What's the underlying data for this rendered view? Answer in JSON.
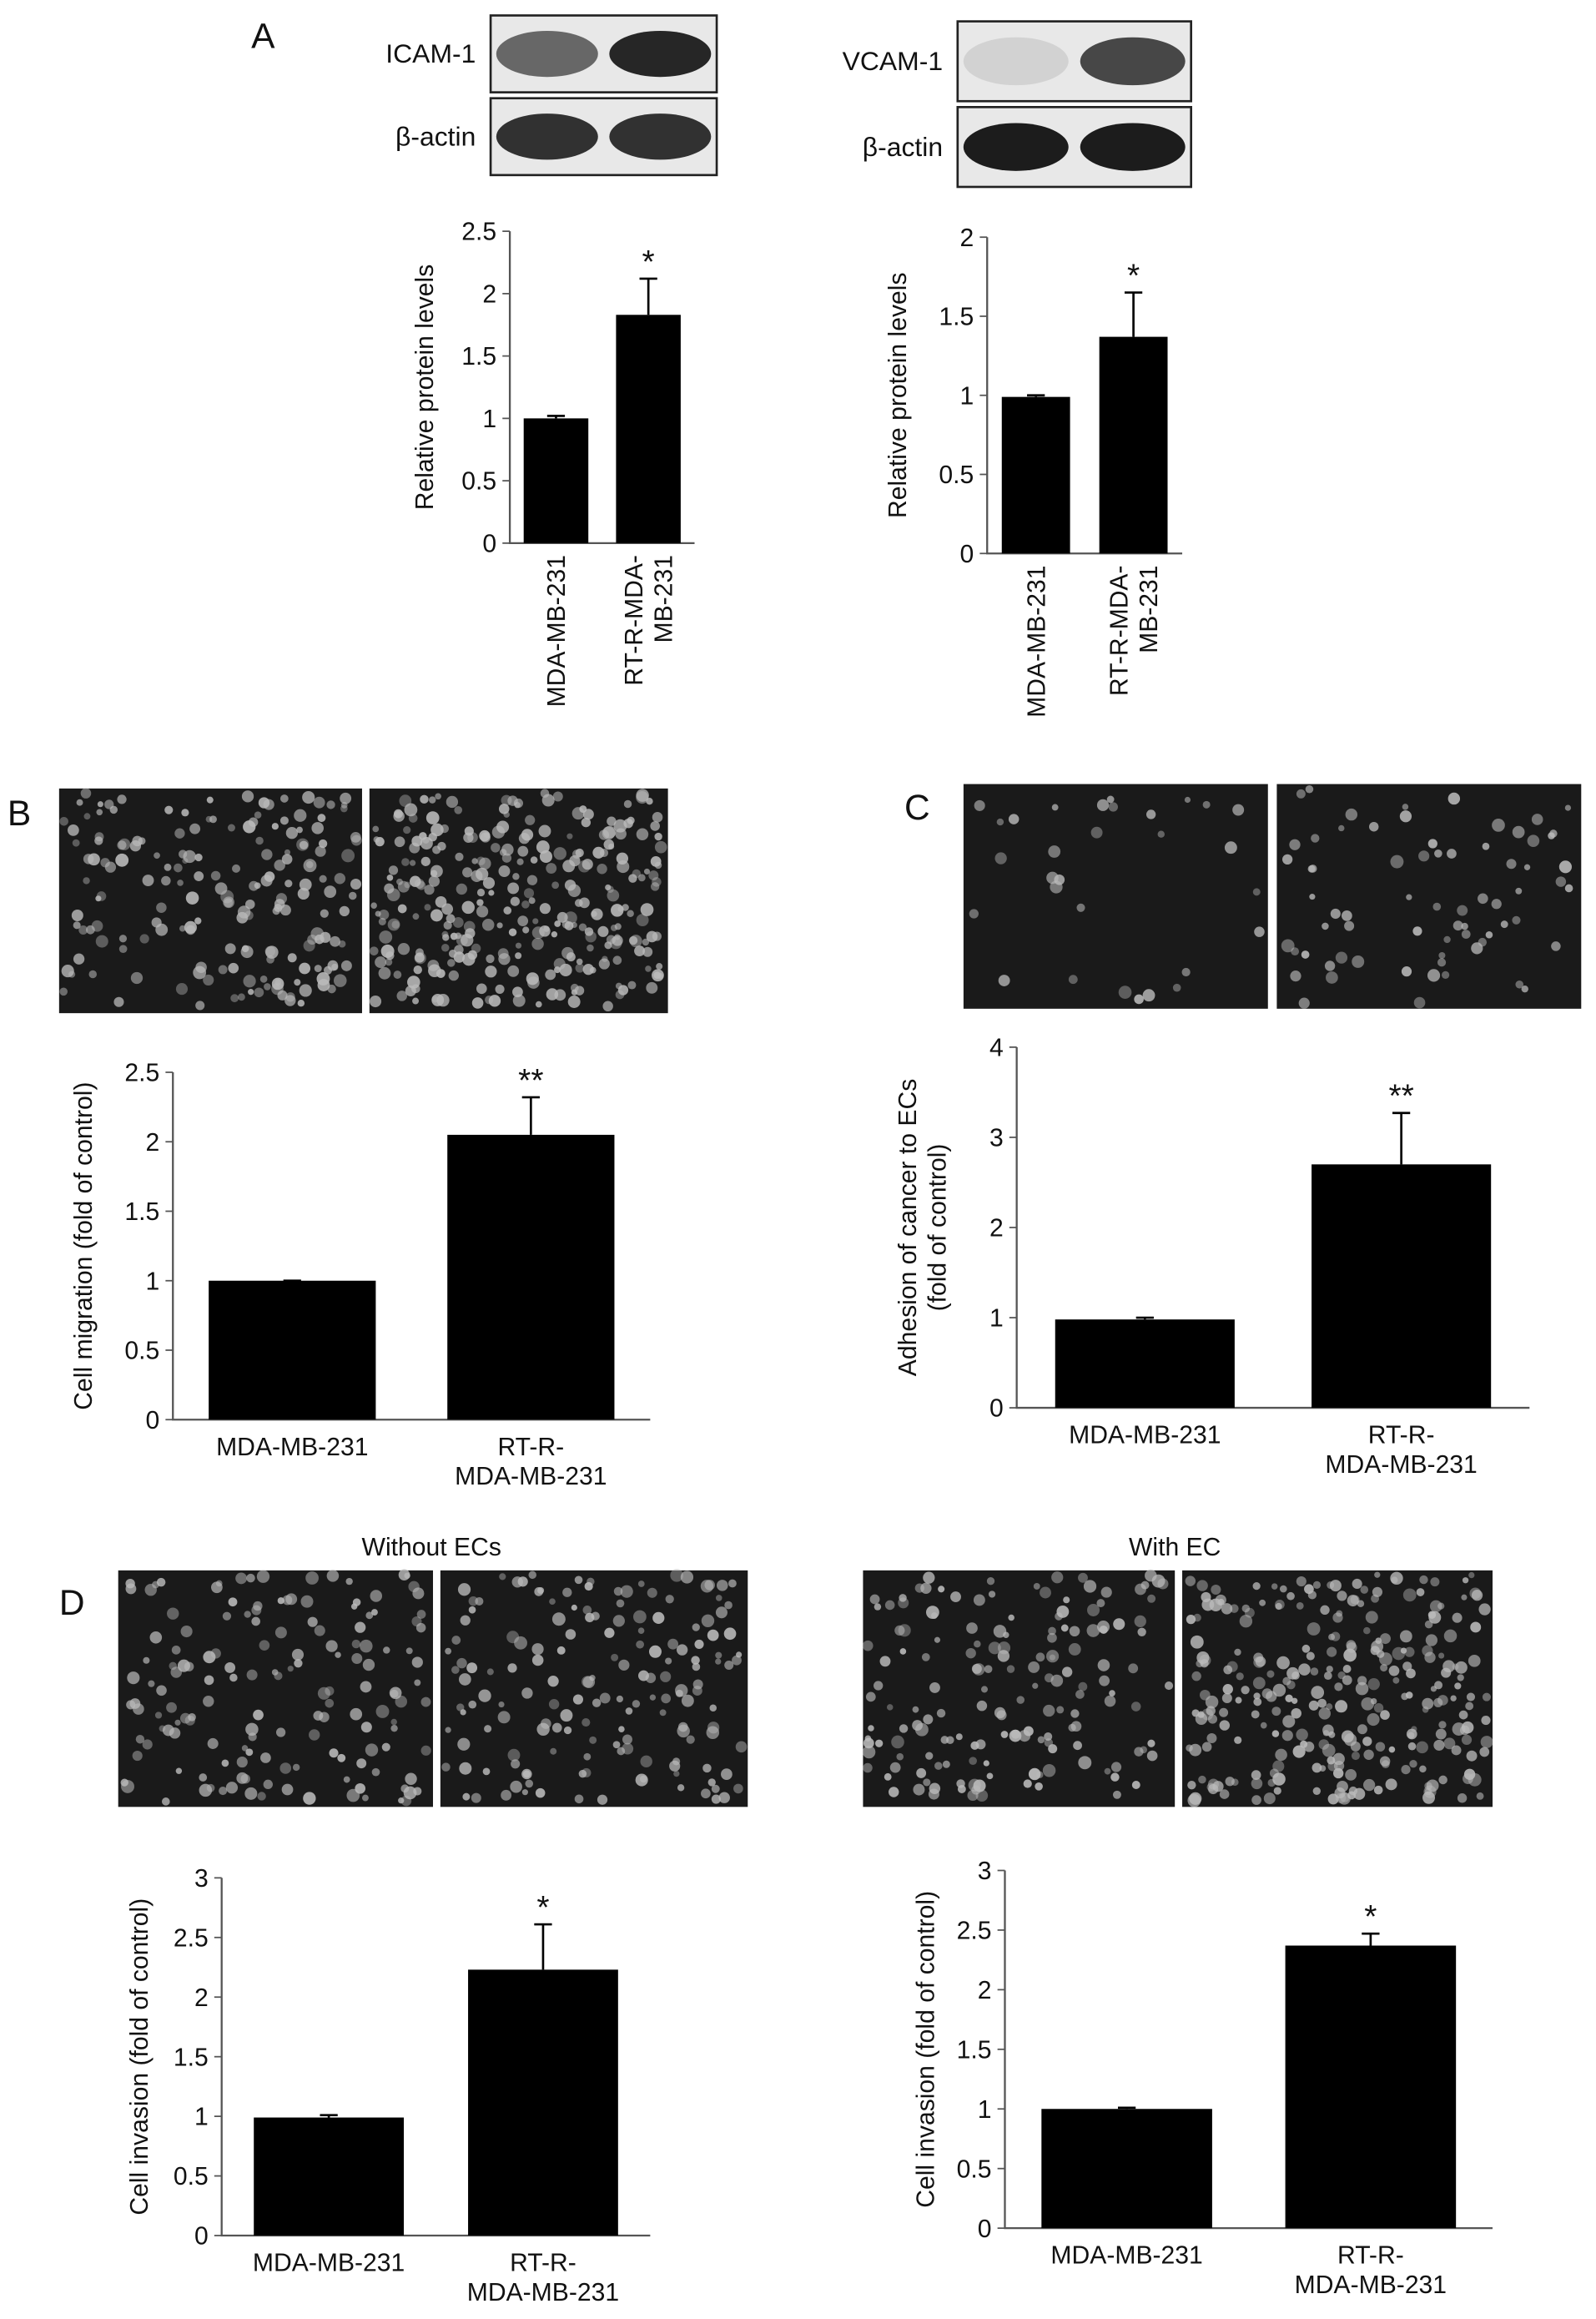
{
  "labels": [
    "A",
    "B",
    "C",
    "D"
  ],
  "blots": [
    {
      "label": "ICAM-1"
    },
    {
      "label": "β-actin"
    },
    {
      "label": "VCAM-1"
    },
    {
      "label": "β-actin"
    }
  ],
  "chart_data": [
    {
      "type": "bar",
      "ylabel": [
        "Relative protein levels"
      ],
      "categories": [
        [
          "MDA-MB-231"
        ],
        [
          "RT-R-MDA-",
          "MB-231"
        ]
      ],
      "values": [
        1.0,
        1.83
      ],
      "errors": [
        0.02,
        0.29
      ],
      "annotation": "*",
      "color": "#000000",
      "ylim": [
        0,
        2.5
      ],
      "yticks": [
        0,
        0.5,
        1,
        1.5,
        2,
        2.5
      ],
      "rotated_categories": true
    },
    {
      "type": "bar",
      "ylabel": [
        "Relative protein levels"
      ],
      "categories": [
        [
          "MDA-MB-231"
        ],
        [
          "RT-R-MDA-",
          "MB-231"
        ]
      ],
      "values": [
        0.99,
        1.37
      ],
      "errors": [
        0.01,
        0.28
      ],
      "annotation": "*",
      "color": "#000000",
      "ylim": [
        0,
        2
      ],
      "yticks": [
        0,
        0.5,
        1,
        1.5,
        2
      ],
      "rotated_categories": true
    },
    {
      "type": "bar",
      "ylabel": [
        "Cell migration (fold of control)"
      ],
      "categories": [
        [
          "MDA-MB-231"
        ],
        [
          "RT-R-",
          "MDA-MB-231"
        ]
      ],
      "values": [
        1.0,
        2.05
      ],
      "errors": [
        0.0,
        0.27
      ],
      "annotation": "**",
      "color": "#000000",
      "ylim": [
        0,
        2.5
      ],
      "yticks": [
        0,
        0.5,
        1,
        1.5,
        2,
        2.5
      ]
    },
    {
      "type": "bar",
      "ylabel": [
        "Adhesion of cancer to ECs",
        "(fold of control)"
      ],
      "categories": [
        [
          "MDA-MB-231"
        ],
        [
          "RT-R-",
          "MDA-MB-231"
        ]
      ],
      "values": [
        0.98,
        2.7
      ],
      "errors": [
        0.02,
        0.57
      ],
      "annotation": "**",
      "color": "#000000",
      "ylim": [
        0,
        4
      ],
      "yticks": [
        0,
        1,
        2,
        3,
        4
      ]
    },
    {
      "type": "bar",
      "title": "Without ECs",
      "ylabel": [
        "Cell invasion (fold of control)"
      ],
      "categories": [
        [
          "MDA-MB-231"
        ],
        [
          "RT-R-",
          "MDA-MB-231"
        ]
      ],
      "values": [
        0.99,
        2.23
      ],
      "errors": [
        0.02,
        0.38
      ],
      "annotation": "*",
      "color": "#000000",
      "ylim": [
        0,
        3
      ],
      "yticks": [
        0,
        0.5,
        1,
        1.5,
        2,
        2.5,
        3
      ]
    },
    {
      "type": "bar",
      "title": "With EC",
      "ylabel": [
        "Cell invasion (fold of control)"
      ],
      "categories": [
        [
          "MDA-MB-231"
        ],
        [
          "RT-R-",
          "MDA-MB-231"
        ]
      ],
      "values": [
        1.0,
        2.37
      ],
      "errors": [
        0.01,
        0.1
      ],
      "annotation": "*",
      "color": "#000000",
      "ylim": [
        0,
        3
      ],
      "yticks": [
        0,
        0.5,
        1,
        1.5,
        2,
        2.5,
        3
      ]
    }
  ]
}
